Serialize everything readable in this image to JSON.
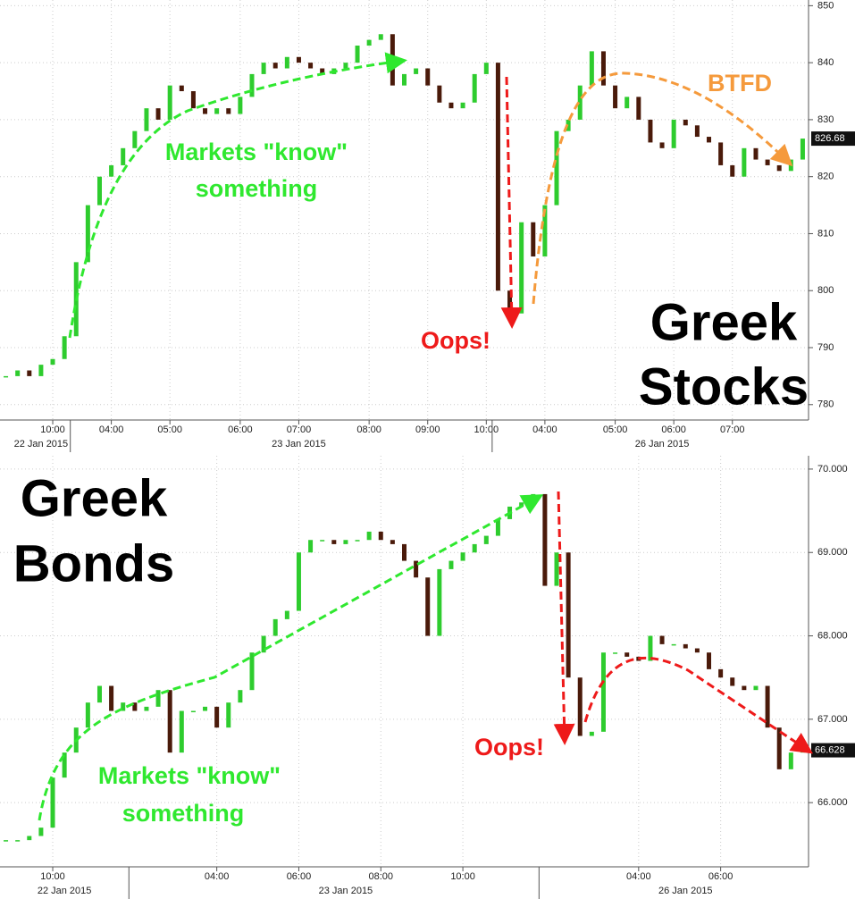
{
  "chart_data": [
    {
      "type": "candlestick",
      "title": [
        "Greek",
        "Stocks"
      ],
      "annotations": [
        [
          "Markets \"know\"",
          "something"
        ],
        [
          "Oops!"
        ],
        [
          "BTFD"
        ]
      ],
      "categories": [
        null,
        null,
        null,
        null,
        "10:00",
        null,
        null,
        null,
        null,
        "04:00",
        null,
        null,
        null,
        null,
        "05:00",
        null,
        null,
        null,
        null,
        null,
        "06:00",
        null,
        null,
        null,
        null,
        "07:00",
        null,
        null,
        null,
        null,
        null,
        "08:00",
        null,
        null,
        null,
        null,
        "09:00",
        null,
        null,
        null,
        null,
        "10:00",
        null,
        null,
        null,
        null,
        "04:00",
        null,
        null,
        null,
        null,
        null,
        "05:00",
        null,
        null,
        null,
        null,
        "06:00",
        null,
        null,
        null,
        null,
        "07:00",
        null,
        null,
        null,
        null,
        null,
        null
      ],
      "date_categories": [
        null,
        null,
        null,
        "22 Jan 2015",
        null,
        null,
        null,
        null,
        null,
        null,
        null,
        null,
        null,
        null,
        null,
        null,
        null,
        null,
        null,
        null,
        null,
        null,
        null,
        null,
        null,
        "23 Jan 2015",
        null,
        null,
        null,
        null,
        null,
        null,
        null,
        null,
        null,
        null,
        null,
        null,
        null,
        null,
        null,
        null,
        null,
        null,
        null,
        null,
        null,
        null,
        null,
        null,
        null,
        null,
        null,
        null,
        null,
        null,
        "26 Jan 2015",
        null,
        null,
        null,
        null,
        null,
        null,
        null,
        null,
        null,
        null,
        null,
        null
      ],
      "values": [
        785,
        786,
        785,
        787,
        788,
        792,
        805,
        815,
        820,
        822,
        825,
        828,
        832,
        830,
        836,
        835,
        832,
        831,
        832,
        831,
        834,
        838,
        840,
        839,
        841,
        840,
        839,
        838,
        839,
        840,
        843,
        844,
        845,
        836,
        838,
        839,
        836,
        833,
        832,
        833,
        838,
        840,
        800,
        796,
        812,
        806,
        815,
        828,
        830,
        836,
        842,
        836,
        832,
        834,
        830,
        826,
        825,
        830,
        829,
        827,
        826,
        822,
        820,
        825,
        823,
        822,
        821,
        823,
        826.68
      ],
      "up_color": "#2ecc2e",
      "down_color": "#4a1a0a",
      "ylim": [
        777.3,
        851
      ],
      "yticks": [
        780,
        790,
        800,
        810,
        820,
        830,
        840,
        850
      ],
      "grid": true
    },
    {
      "type": "candlestick",
      "title": [
        "Greek",
        "Bonds"
      ],
      "annotations": [
        [
          "Markets \"know\"",
          "something"
        ],
        [
          "Oops!"
        ]
      ],
      "categories": [
        null,
        null,
        null,
        null,
        "10:00",
        null,
        null,
        null,
        null,
        null,
        null,
        null,
        null,
        null,
        null,
        null,
        null,
        null,
        "04:00",
        null,
        null,
        null,
        null,
        null,
        null,
        "06:00",
        null,
        null,
        null,
        null,
        null,
        null,
        "08:00",
        null,
        null,
        null,
        null,
        null,
        null,
        "10:00",
        null,
        null,
        null,
        null,
        null,
        null,
        null,
        null,
        null,
        null,
        null,
        null,
        null,
        null,
        "04:00",
        null,
        null,
        null,
        null,
        null,
        null,
        "06:00",
        null,
        null,
        null,
        null,
        null,
        null,
        null
      ],
      "date_categories": [
        null,
        null,
        null,
        null,
        null,
        "22 Jan 2015",
        null,
        null,
        null,
        null,
        null,
        null,
        null,
        null,
        null,
        null,
        null,
        null,
        null,
        null,
        null,
        null,
        null,
        null,
        null,
        null,
        null,
        null,
        null,
        "23 Jan 2015",
        null,
        null,
        null,
        null,
        null,
        null,
        null,
        null,
        null,
        null,
        null,
        null,
        null,
        null,
        null,
        null,
        null,
        null,
        null,
        null,
        null,
        null,
        null,
        null,
        null,
        null,
        null,
        null,
        "26 Jan 2015",
        null,
        null,
        null,
        null,
        null,
        null,
        null,
        null,
        null,
        null
      ],
      "values": [
        65.55,
        65.55,
        65.6,
        65.7,
        66.3,
        66.6,
        66.9,
        67.2,
        67.4,
        67.1,
        67.2,
        67.1,
        67.15,
        67.35,
        66.6,
        67.1,
        67.1,
        67.15,
        66.9,
        67.2,
        67.35,
        67.8,
        68.0,
        68.2,
        68.3,
        69.0,
        69.15,
        69.15,
        69.1,
        69.15,
        69.15,
        69.25,
        69.15,
        69.1,
        68.9,
        68.7,
        68.0,
        68.8,
        68.9,
        69.0,
        69.1,
        69.2,
        69.4,
        69.55,
        69.6,
        69.7,
        68.6,
        69.0,
        67.5,
        66.8,
        66.85,
        67.8,
        67.8,
        67.75,
        67.7,
        68.0,
        67.9,
        67.9,
        67.85,
        67.8,
        67.6,
        67.5,
        67.4,
        67.35,
        67.4,
        66.9,
        66.4,
        66.6,
        66.628
      ],
      "up_color": "#2ecc2e",
      "down_color": "#4a1a0a",
      "ylim": [
        65.23,
        70.16
      ],
      "yticks": [
        {
          "value": 66,
          "label": "66.000"
        },
        {
          "value": 67,
          "label": "67.000"
        },
        {
          "value": 68,
          "label": "68.000"
        },
        {
          "value": 69,
          "label": "69.000"
        },
        {
          "value": 70,
          "label": "70.000"
        }
      ],
      "grid": true
    }
  ]
}
